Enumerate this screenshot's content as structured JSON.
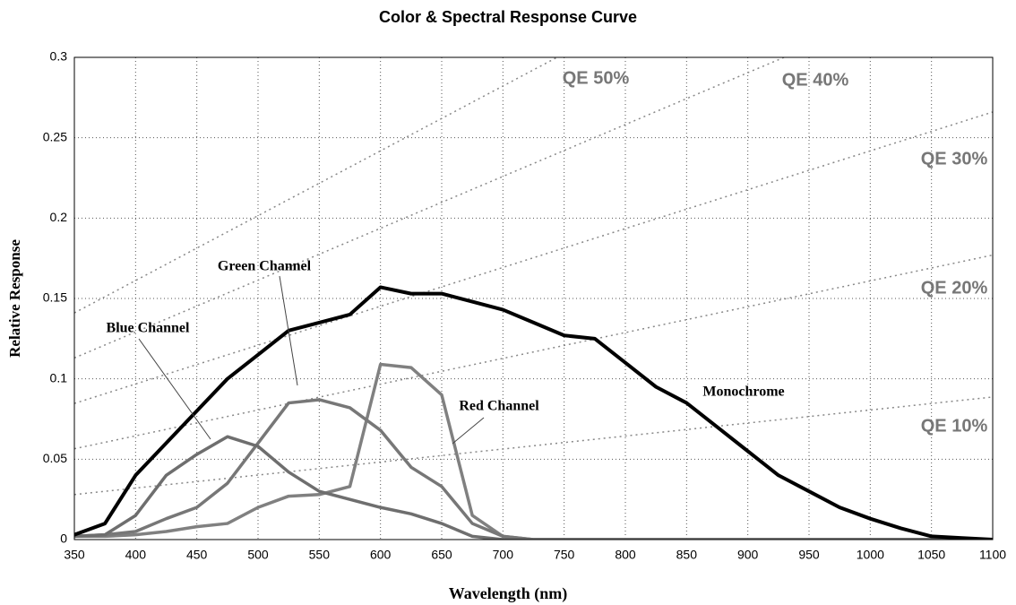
{
  "chart_data": {
    "type": "line",
    "title": "Color & Spectral Response Curve",
    "x_label": "Wavelength (nm)",
    "y_label": "Relative Response",
    "x": [
      350,
      375,
      400,
      425,
      450,
      475,
      500,
      525,
      550,
      575,
      600,
      625,
      650,
      675,
      700,
      725,
      750,
      775,
      800,
      825,
      850,
      875,
      900,
      925,
      950,
      975,
      1000,
      1025,
      1050,
      1075,
      1100
    ],
    "series": [
      {
        "name": "Monochrome",
        "color": "#000000",
        "width": 4,
        "values": [
          0.003,
          0.01,
          0.04,
          0.06,
          0.08,
          0.1,
          0.115,
          0.13,
          0.135,
          0.14,
          0.157,
          0.153,
          0.153,
          0.148,
          0.143,
          0.135,
          0.127,
          0.125,
          0.11,
          0.095,
          0.085,
          0.07,
          0.055,
          0.04,
          0.03,
          0.02,
          0.013,
          0.007,
          0.002,
          0.001,
          0
        ]
      },
      {
        "name": "Blue Channel",
        "color": "#6e6e6e",
        "width": 3.5,
        "values": [
          0.002,
          0.003,
          0.015,
          0.04,
          0.053,
          0.064,
          0.058,
          0.042,
          0.03,
          0.025,
          0.02,
          0.016,
          0.01,
          0.002,
          0,
          0,
          0,
          0,
          0,
          0,
          0,
          0,
          0,
          0,
          0,
          0,
          0,
          0,
          0,
          0,
          0
        ]
      },
      {
        "name": "Green Channel",
        "color": "#777777",
        "width": 3.5,
        "values": [
          0.002,
          0.003,
          0.005,
          0.013,
          0.02,
          0.035,
          0.06,
          0.085,
          0.087,
          0.082,
          0.068,
          0.045,
          0.033,
          0.01,
          0.002,
          0,
          0,
          0,
          0,
          0,
          0,
          0,
          0,
          0,
          0,
          0,
          0,
          0,
          0,
          0,
          0
        ]
      },
      {
        "name": "Red Channel",
        "color": "#808080",
        "width": 3.5,
        "values": [
          0.002,
          0.002,
          0.003,
          0.005,
          0.008,
          0.01,
          0.02,
          0.027,
          0.028,
          0.033,
          0.109,
          0.107,
          0.09,
          0.015,
          0.002,
          0,
          0,
          0,
          0,
          0,
          0,
          0,
          0,
          0,
          0,
          0,
          0,
          0,
          0,
          0,
          0
        ]
      }
    ],
    "qe_lines": [
      {
        "label": "QE 50%",
        "x": [
          350,
          1100
        ],
        "values": [
          0.141,
          0.4435
        ]
      },
      {
        "label": "QE 40%",
        "x": [
          350,
          1100
        ],
        "values": [
          0.113,
          0.355
        ]
      },
      {
        "label": "QE 30%",
        "x": [
          350,
          1100
        ],
        "values": [
          0.0847,
          0.266
        ]
      },
      {
        "label": "QE 20%",
        "x": [
          350,
          1100
        ],
        "values": [
          0.0565,
          0.177
        ]
      },
      {
        "label": "QE 10%",
        "x": [
          350,
          1100
        ],
        "values": [
          0.028,
          0.0887
        ]
      }
    ],
    "xlim": [
      350,
      1100
    ],
    "xticks": [
      350,
      400,
      450,
      500,
      550,
      600,
      650,
      700,
      750,
      800,
      850,
      900,
      950,
      1000,
      1050,
      1100
    ],
    "ylim": [
      0,
      0.3
    ],
    "yticks": [
      0,
      0.05,
      0.1,
      0.15,
      0.2,
      0.25,
      0.3
    ],
    "grid": true
  }
}
